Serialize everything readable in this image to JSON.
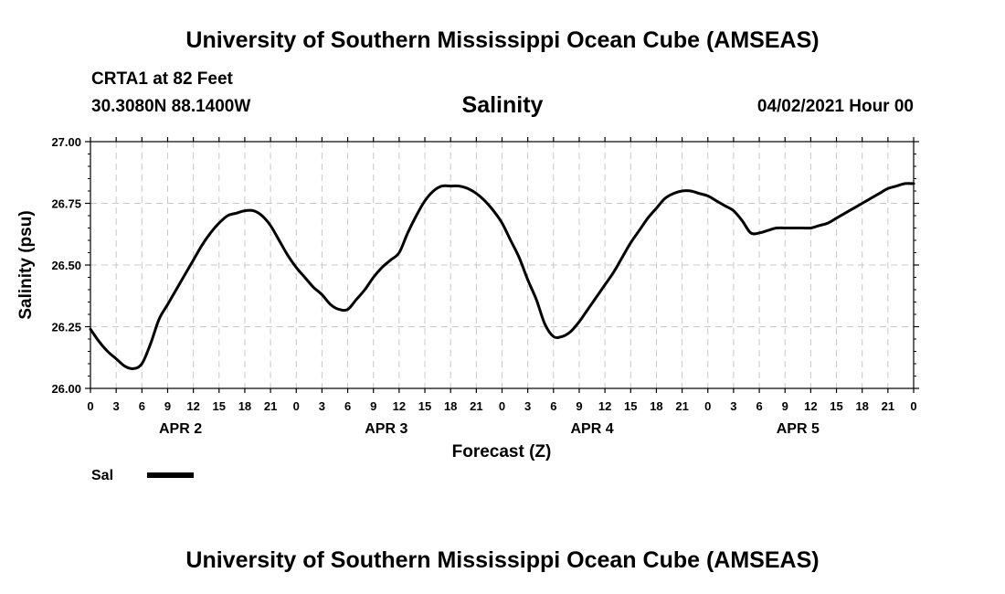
{
  "header": {
    "top_title": "University of Southern Mississippi Ocean Cube (AMSEAS)",
    "station": "CRTA1 at 82 Feet",
    "coords": "30.3080N  88.1400W",
    "timestamp": "04/02/2021 Hour 00"
  },
  "footer": {
    "bottom_title": "University of Southern Mississippi Ocean Cube (AMSEAS)"
  },
  "colors": {
    "line": "#000000",
    "grid": "#c8c8c8"
  },
  "chart_data": {
    "type": "line",
    "title": "Salinity",
    "xlabel": "Forecast (Z)",
    "ylabel": "Salinity (psu)",
    "ylim": [
      26.0,
      27.0
    ],
    "yticks": [
      "26.00",
      "26.25",
      "26.50",
      "26.75",
      "27.00"
    ],
    "xlim_hours": [
      0,
      96
    ],
    "xtick_step_hours": 3,
    "xtick_labels": [
      "0",
      "3",
      "6",
      "9",
      "12",
      "15",
      "18",
      "21",
      "0",
      "3",
      "6",
      "9",
      "12",
      "15",
      "18",
      "21",
      "0",
      "3",
      "6",
      "9",
      "12",
      "15",
      "18",
      "21",
      "0",
      "3",
      "6",
      "9",
      "12",
      "15",
      "18",
      "21",
      "0"
    ],
    "day_labels": [
      {
        "label": "APR 2",
        "hour": 10.5
      },
      {
        "label": "APR 3",
        "hour": 34.5
      },
      {
        "label": "APR 4",
        "hour": 58.5
      },
      {
        "label": "APR 5",
        "hour": 82.5
      }
    ],
    "grid": true,
    "legend": {
      "label": "Sal",
      "position": "bottom-left"
    },
    "series": [
      {
        "name": "Sal",
        "x": [
          0,
          1,
          2,
          3,
          4,
          5,
          6,
          7,
          8,
          9,
          10,
          11,
          12,
          13,
          14,
          15,
          16,
          17,
          18,
          19,
          20,
          21,
          22,
          23,
          24,
          25,
          26,
          27,
          28,
          29,
          30,
          31,
          32,
          33,
          34,
          35,
          36,
          37,
          38,
          39,
          40,
          41,
          42,
          43,
          44,
          45,
          46,
          47,
          48,
          49,
          50,
          51,
          52,
          53,
          54,
          55,
          56,
          57,
          58,
          59,
          60,
          61,
          62,
          63,
          64,
          65,
          66,
          67,
          68,
          69,
          70,
          71,
          72,
          73,
          74,
          75,
          76,
          77,
          78,
          79,
          80,
          81,
          82,
          83,
          84,
          85,
          86,
          87,
          88,
          89,
          90,
          91,
          92,
          93,
          94,
          95,
          96
        ],
        "values": [
          26.24,
          26.19,
          26.15,
          26.12,
          26.09,
          26.08,
          26.1,
          26.18,
          26.28,
          26.34,
          26.4,
          26.46,
          26.52,
          26.58,
          26.63,
          26.67,
          26.7,
          26.71,
          26.72,
          26.72,
          26.7,
          26.66,
          26.6,
          26.54,
          26.49,
          26.45,
          26.41,
          26.38,
          26.34,
          26.32,
          26.32,
          26.36,
          26.4,
          26.45,
          26.49,
          26.52,
          26.55,
          26.63,
          26.7,
          26.76,
          26.8,
          26.82,
          26.82,
          26.82,
          26.81,
          26.79,
          26.76,
          26.72,
          26.67,
          26.6,
          26.53,
          26.44,
          26.36,
          26.26,
          26.21,
          26.21,
          26.23,
          26.27,
          26.32,
          26.37,
          26.42,
          26.47,
          26.53,
          26.59,
          26.64,
          26.69,
          26.73,
          26.77,
          26.79,
          26.8,
          26.8,
          26.79,
          26.78,
          26.76,
          26.74,
          26.72,
          26.68,
          26.63,
          26.63,
          26.64,
          26.65,
          26.65,
          26.65,
          26.65,
          26.65,
          26.66,
          26.67,
          26.69,
          26.71,
          26.73,
          26.75,
          26.77,
          26.79,
          26.81,
          26.82,
          26.83,
          26.83
        ]
      }
    ]
  }
}
